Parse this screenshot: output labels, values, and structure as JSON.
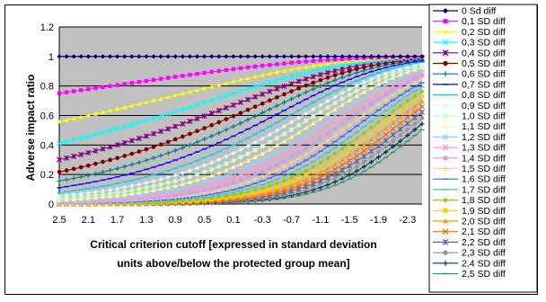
{
  "chart_data": {
    "type": "line",
    "title": "",
    "ylabel": "Adverse impact ratio",
    "xlabel_lines": [
      "Critical criterion cutoff [expressed in standard deviation",
      "units above/below the protected group mean]"
    ],
    "x_tick_labels": [
      "2.5",
      "2.1",
      "1.7",
      "1.3",
      "0.9",
      "0.5",
      "0.1",
      "-0.3",
      "-0.7",
      "-1.1",
      "-1.5",
      "-1.9",
      "-2.3"
    ],
    "x": [
      2.5,
      2.4,
      2.3,
      2.2,
      2.1,
      2.0,
      1.9,
      1.8,
      1.7,
      1.6,
      1.5,
      1.4,
      1.3,
      1.2,
      1.1,
      1.0,
      0.9,
      0.8,
      0.7,
      0.6,
      0.5,
      0.4,
      0.3,
      0.2,
      0.1,
      0.0,
      -0.1,
      -0.2,
      -0.3,
      -0.4,
      -0.5,
      -0.6,
      -0.7,
      -0.8,
      -0.9,
      -1.0,
      -1.1,
      -1.2,
      -1.3,
      -1.4,
      -1.5,
      -1.6,
      -1.7,
      -1.8,
      -1.9,
      -2.0,
      -2.1,
      -2.2,
      -2.3,
      -2.4,
      -2.5
    ],
    "xlim": [
      2.5,
      -2.5
    ],
    "ylim": [
      0,
      1.2
    ],
    "y_ticks": [
      "0",
      "0.2",
      "0.4",
      "0.6",
      "0.8",
      "1",
      "1.2"
    ],
    "y_tick_values": [
      0,
      0.2,
      0.4,
      0.6,
      0.8,
      1.0,
      1.2
    ],
    "grid": true,
    "legend_position": "right",
    "series_rule": "y = Phi(-x - d) / Phi(-x), d = SD difference",
    "series": [
      {
        "name": "0 Sd diff",
        "d": 0.0,
        "color": "#000080",
        "marker": "diamond"
      },
      {
        "name": "0,1 SD diff",
        "d": 0.1,
        "color": "#FF00FF",
        "marker": "square"
      },
      {
        "name": "0,2 SD diff",
        "d": 0.2,
        "color": "#FFFF00",
        "marker": "triangle"
      },
      {
        "name": "0,3 SD diff",
        "d": 0.3,
        "color": "#00FFFF",
        "marker": "x"
      },
      {
        "name": "0,4 SD diff",
        "d": 0.4,
        "color": "#800080",
        "marker": "star"
      },
      {
        "name": "0,5 SD diff",
        "d": 0.5,
        "color": "#800000",
        "marker": "circle"
      },
      {
        "name": "0,6 SD diff",
        "d": 0.6,
        "color": "#008080",
        "marker": "plus"
      },
      {
        "name": "0,7 SD diff",
        "d": 0.7,
        "color": "#0000FF",
        "marker": "dash"
      },
      {
        "name": "0,8 SD diff",
        "d": 0.8,
        "color": "#00CCFF",
        "marker": "dash"
      },
      {
        "name": "0,9 SD diff",
        "d": 0.9,
        "color": "#CCFFFF",
        "marker": "diamond"
      },
      {
        "name": "1,0 SD diff",
        "d": 1.0,
        "color": "#CCFFCC",
        "marker": "square"
      },
      {
        "name": "1,1 SD diff",
        "d": 1.1,
        "color": "#FFFF99",
        "marker": "triangle"
      },
      {
        "name": "1,2 SD diff",
        "d": 1.2,
        "color": "#99CCFF",
        "marker": "x"
      },
      {
        "name": "1,3 SD diff",
        "d": 1.3,
        "color": "#FF99CC",
        "marker": "star"
      },
      {
        "name": "1,4 SD diff",
        "d": 1.4,
        "color": "#CC99FF",
        "marker": "circle"
      },
      {
        "name": "1,5 SD diff",
        "d": 1.5,
        "color": "#FFCC99",
        "marker": "plus"
      },
      {
        "name": "1,6 SD diff",
        "d": 1.6,
        "color": "#3366FF",
        "marker": "dash"
      },
      {
        "name": "1,7 SD diff",
        "d": 1.7,
        "color": "#33CCCC",
        "marker": "dash"
      },
      {
        "name": "1,8 SD diff",
        "d": 1.8,
        "color": "#99CC00",
        "marker": "diamond"
      },
      {
        "name": "1,9 SD diff",
        "d": 1.9,
        "color": "#FFCC00",
        "marker": "square"
      },
      {
        "name": "2,0 SD diff",
        "d": 2.0,
        "color": "#FF9900",
        "marker": "triangle"
      },
      {
        "name": "2,1 SD diff",
        "d": 2.1,
        "color": "#FF6600",
        "marker": "x"
      },
      {
        "name": "2,2 SD diff",
        "d": 2.2,
        "color": "#666699",
        "marker": "star"
      },
      {
        "name": "2,3 SD diff",
        "d": 2.3,
        "color": "#969696",
        "marker": "circle"
      },
      {
        "name": "2,4 SD diff",
        "d": 2.4,
        "color": "#003366",
        "marker": "plus"
      },
      {
        "name": "2,5 SD diff",
        "d": 2.5,
        "color": "#339966",
        "marker": "dash"
      }
    ]
  }
}
